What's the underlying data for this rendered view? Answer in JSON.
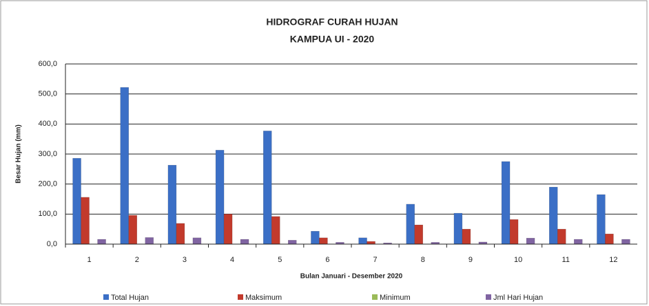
{
  "chart_data": {
    "type": "bar",
    "title": "HIDROGRAF CURAH HUJAN",
    "subtitle": "KAMPUA UI - 2020",
    "x_label": "Bulan Januari  - Desember 2020",
    "y_label": "Besar Hujan (mm)",
    "categories": [
      "1",
      "2",
      "3",
      "4",
      "5",
      "6",
      "7",
      "8",
      "9",
      "10",
      "11",
      "12"
    ],
    "series": [
      {
        "name": "Total Hujan",
        "color": "#3b6fc6",
        "values": [
          286,
          522,
          263,
          313,
          377,
          43,
          21,
          133,
          103,
          275,
          190,
          165
        ]
      },
      {
        "name": "Maksimum",
        "color": "#c23a2c",
        "values": [
          156,
          96,
          69,
          100,
          92,
          21,
          9,
          64,
          50,
          82,
          50,
          34
        ]
      },
      {
        "name": "Minimum",
        "color": "#9bbb59",
        "values": [
          0,
          0,
          0,
          0,
          0,
          0,
          0,
          0,
          0,
          0,
          0,
          0
        ]
      },
      {
        "name": "Jml Hari Hujan",
        "color": "#8064a2",
        "values": [
          16,
          22,
          21,
          16,
          13,
          6,
          4,
          6,
          7,
          20,
          16,
          16
        ]
      }
    ],
    "ylim": [
      0,
      600
    ],
    "yticks": [
      {
        "value": 0,
        "label": "0,0"
      },
      {
        "value": 100,
        "label": "100,0"
      },
      {
        "value": 200,
        "label": "200,0"
      },
      {
        "value": 300,
        "label": "300,0"
      },
      {
        "value": 400,
        "label": "400,0"
      },
      {
        "value": 500,
        "label": "500,0"
      },
      {
        "value": 600,
        "label": "600,0"
      }
    ],
    "grid": true,
    "legend": "bottom"
  }
}
